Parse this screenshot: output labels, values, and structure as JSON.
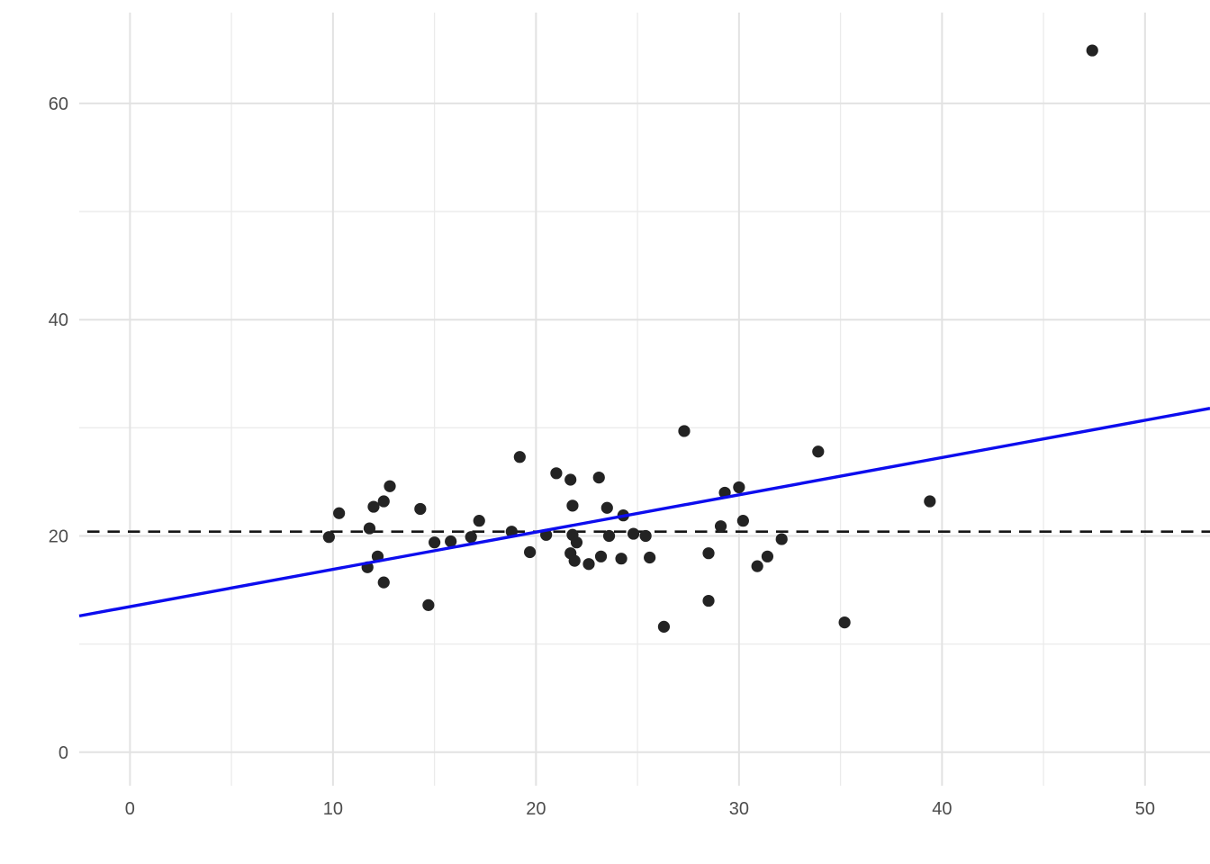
{
  "chart_data": {
    "type": "scatter",
    "title": "",
    "subtitle": "",
    "xlabel": "",
    "ylabel": "",
    "legend_position": "none",
    "grid": true,
    "x_ticks": [
      0,
      10,
      20,
      30,
      40,
      50
    ],
    "y_ticks": [
      0,
      20,
      40,
      60
    ],
    "x_minor_ticks": [
      5,
      15,
      25,
      35,
      45
    ],
    "y_minor_ticks": [
      10,
      30,
      50
    ],
    "xlim": [
      -2.5,
      53.2
    ],
    "ylim": [
      -3.1,
      68.4
    ],
    "points": [
      [
        9.8,
        19.9
      ],
      [
        10.3,
        22.1
      ],
      [
        11.7,
        17.1
      ],
      [
        11.8,
        20.7
      ],
      [
        12.0,
        22.7
      ],
      [
        12.2,
        18.1
      ],
      [
        12.5,
        23.2
      ],
      [
        12.5,
        15.7
      ],
      [
        12.8,
        24.6
      ],
      [
        14.3,
        22.5
      ],
      [
        14.7,
        13.6
      ],
      [
        15.0,
        19.4
      ],
      [
        15.8,
        19.5
      ],
      [
        16.8,
        19.9
      ],
      [
        17.2,
        21.4
      ],
      [
        18.8,
        20.4
      ],
      [
        19.2,
        27.3
      ],
      [
        19.7,
        18.5
      ],
      [
        20.5,
        20.1
      ],
      [
        21.0,
        25.8
      ],
      [
        21.7,
        25.2
      ],
      [
        21.7,
        18.4
      ],
      [
        21.8,
        22.8
      ],
      [
        21.8,
        20.1
      ],
      [
        21.9,
        17.7
      ],
      [
        22.0,
        19.4
      ],
      [
        22.6,
        17.4
      ],
      [
        23.1,
        25.4
      ],
      [
        23.2,
        18.1
      ],
      [
        23.5,
        22.6
      ],
      [
        23.6,
        20.0
      ],
      [
        24.2,
        17.9
      ],
      [
        24.3,
        21.9
      ],
      [
        24.8,
        20.2
      ],
      [
        25.4,
        20.0
      ],
      [
        25.6,
        18.0
      ],
      [
        26.3,
        11.6
      ],
      [
        27.3,
        29.7
      ],
      [
        28.5,
        18.4
      ],
      [
        28.5,
        14.0
      ],
      [
        29.1,
        20.9
      ],
      [
        29.3,
        24.0
      ],
      [
        30.0,
        24.5
      ],
      [
        30.2,
        21.4
      ],
      [
        30.9,
        17.2
      ],
      [
        31.4,
        18.1
      ],
      [
        32.1,
        19.7
      ],
      [
        33.9,
        27.8
      ],
      [
        35.2,
        12.0
      ],
      [
        39.4,
        23.2
      ],
      [
        47.4,
        64.9
      ]
    ],
    "regression_line": {
      "x1": -2.5,
      "y1": 12.6,
      "x2": 53.2,
      "y2": 31.8,
      "color": "#0d0dee",
      "width": 3.4,
      "style": "solid"
    },
    "mean_line": {
      "y": 20.4,
      "color": "#151515",
      "width": 2.7,
      "style": "dashed"
    },
    "colors": {
      "point_fill": "#232323",
      "background": "#ffffff",
      "grid_major": "#e2e2e2",
      "grid_minor": "#ebebeb",
      "tick_text": "#4d4d4d"
    }
  }
}
